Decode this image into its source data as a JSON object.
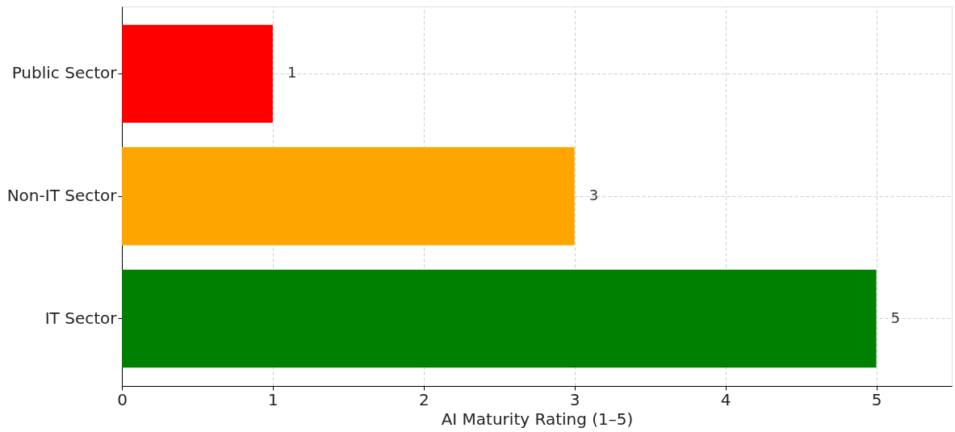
{
  "chart_data": {
    "type": "bar",
    "orientation": "horizontal",
    "xlabel": "AI Maturity Rating (1–5)",
    "categories": [
      "Public Sector",
      "Non-IT Sector",
      "IT Sector"
    ],
    "values": [
      1,
      3,
      5
    ],
    "colors": [
      "#ff0000",
      "#ffa500",
      "#008000"
    ],
    "xlim": [
      0,
      5.5
    ],
    "xticks": [
      0,
      1,
      2,
      3,
      4,
      5
    ],
    "grid": true,
    "data_labels": true
  }
}
